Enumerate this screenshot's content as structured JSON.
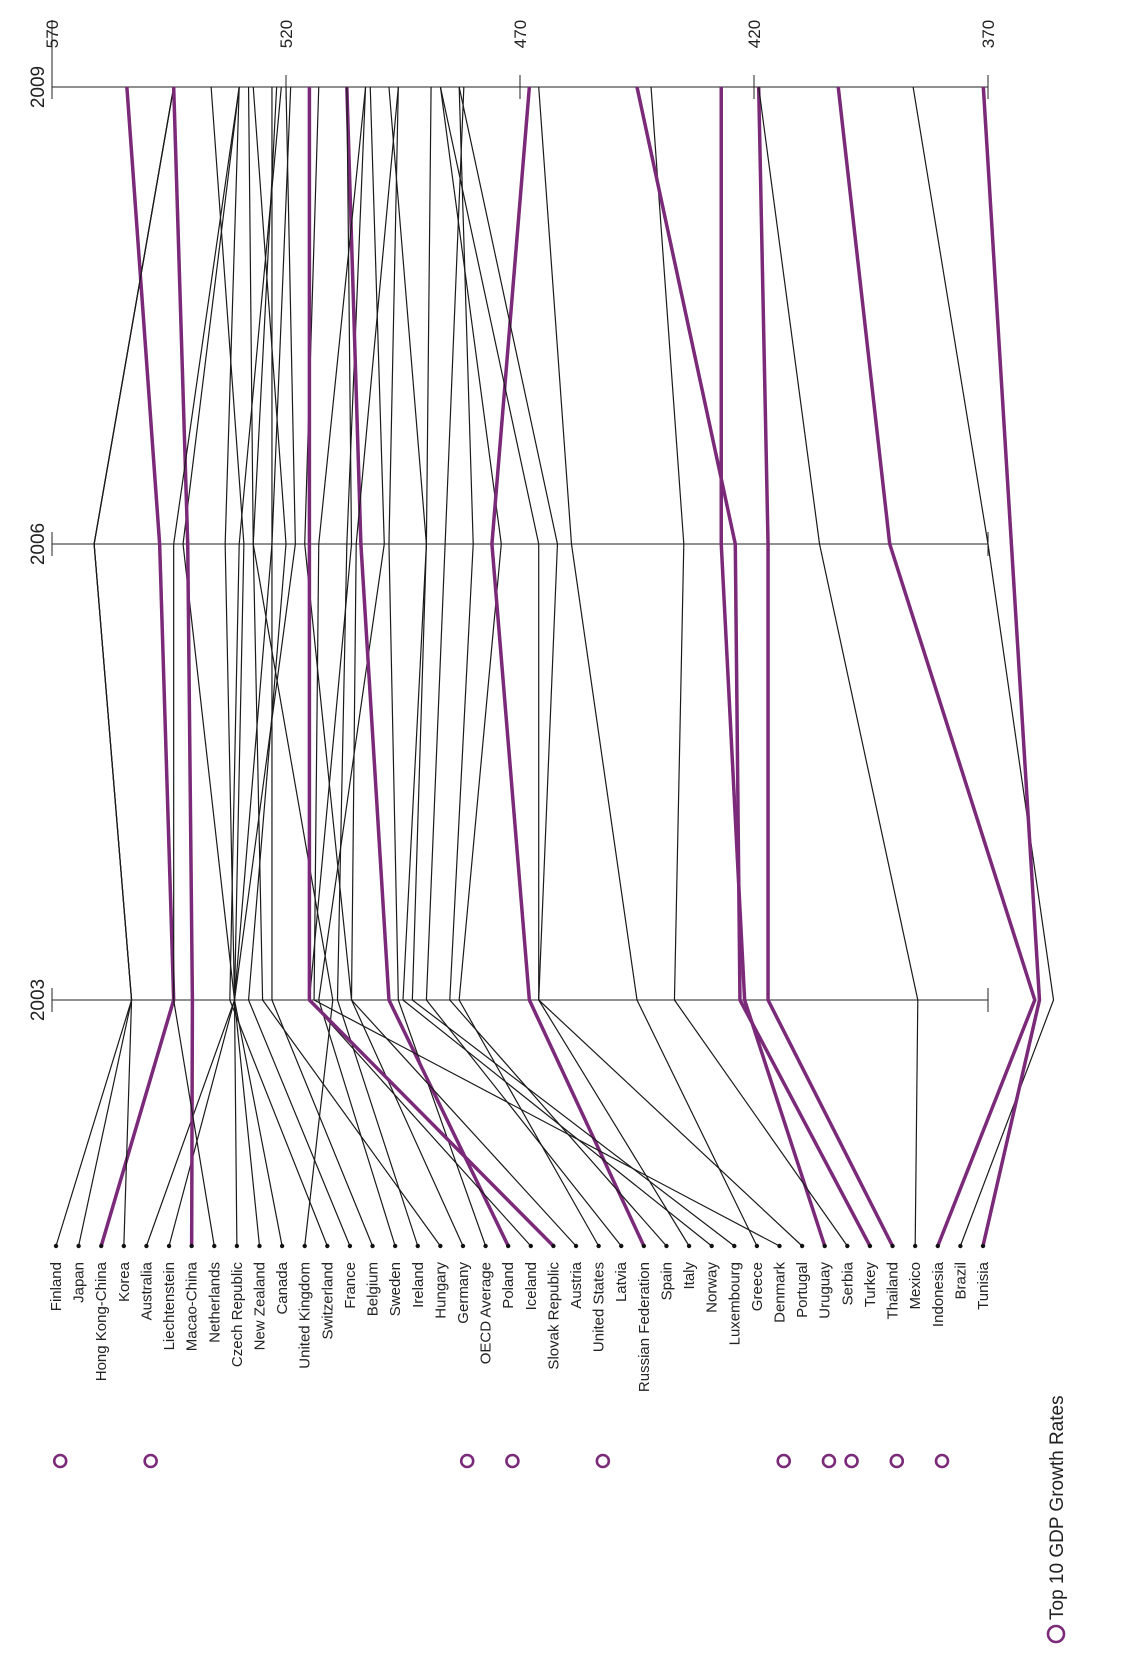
{
  "chart_data": {
    "type": "line",
    "subtype": "slope-chart",
    "orientation": "rotated-90",
    "x_axis": {
      "ticks": [
        "2003",
        "2006",
        "2009"
      ]
    },
    "value_axis": {
      "ticks": [
        "370",
        "420",
        "470",
        "520",
        "570"
      ],
      "range": [
        370,
        570
      ]
    },
    "legend": {
      "label": "Top 10 GDP Growth Rates",
      "color": "#7b2a79",
      "placement": "bottom-left"
    },
    "colors": {
      "highlight": "#7b2a79",
      "default": "#1a1a1a",
      "axis": "#222222"
    },
    "series": [
      {
        "name": "Finland",
        "highlight": false,
        "values": [
          553,
          561,
          544
        ]
      },
      {
        "name": "Japan",
        "highlight": false,
        "values": [
          553,
          561,
          544
        ]
      },
      {
        "name": "Hong Kong-China",
        "highlight": true,
        "values": [
          544,
          547,
          554
        ]
      },
      {
        "name": "Korea",
        "highlight": false,
        "values": [
          553,
          561,
          544
        ]
      },
      {
        "name": "Australia",
        "highlight": false,
        "values": [
          531,
          518,
          520
        ]
      },
      {
        "name": "Liechtenstein",
        "highlight": false,
        "values": [
          531,
          542,
          530
        ]
      },
      {
        "name": "Macao-China",
        "highlight": true,
        "values": [
          540,
          541,
          544
        ]
      },
      {
        "name": "Netherlands",
        "highlight": false,
        "values": [
          544,
          544,
          530
        ]
      },
      {
        "name": "Czech Republic",
        "highlight": false,
        "values": [
          531,
          533,
          530
        ]
      },
      {
        "name": "New Zealand",
        "highlight": false,
        "values": [
          531,
          523,
          519
        ]
      },
      {
        "name": "Canada",
        "highlight": false,
        "values": [
          531,
          529,
          536
        ]
      },
      {
        "name": "United Kingdom",
        "highlight": false,
        "values": [
          510,
          527,
          528
        ]
      },
      {
        "name": "Switzerland",
        "highlight": false,
        "values": [
          532,
          530,
          521
        ]
      },
      {
        "name": "France",
        "highlight": false,
        "values": [
          528,
          520,
          527
        ]
      },
      {
        "name": "Belgium",
        "highlight": false,
        "values": [
          523,
          523,
          523
        ]
      },
      {
        "name": "Sweden",
        "highlight": false,
        "values": [
          513,
          499,
          502
        ]
      },
      {
        "name": "Ireland",
        "highlight": false,
        "values": [
          509,
          507,
          503
        ]
      },
      {
        "name": "Hungary",
        "highlight": false,
        "values": [
          525,
          527,
          522
        ]
      },
      {
        "name": "Germany",
        "highlight": false,
        "values": [
          506,
          516,
          513
        ]
      },
      {
        "name": "OECD Average",
        "highlight": false,
        "values": [
          496,
          498,
          496
        ]
      },
      {
        "name": "Poland",
        "highlight": true,
        "values": [
          498,
          504,
          507
        ]
      },
      {
        "name": "Iceland",
        "highlight": false,
        "values": [
          515,
          506,
          507
        ]
      },
      {
        "name": "Slovak Republic",
        "highlight": true,
        "values": [
          515,
          515,
          515
        ]
      },
      {
        "name": "Austria",
        "highlight": false,
        "values": [
          506,
          505,
          496
        ]
      },
      {
        "name": "United States",
        "highlight": false,
        "values": [
          483,
          474,
          487
        ]
      },
      {
        "name": "Latvia",
        "highlight": false,
        "values": [
          490,
          486,
          482
        ]
      },
      {
        "name": "Russian Federation",
        "highlight": true,
        "values": [
          468,
          476,
          468
        ]
      },
      {
        "name": "Spain",
        "highlight": false,
        "values": [
          485,
          480,
          483
        ]
      },
      {
        "name": "Italy",
        "highlight": false,
        "values": [
          466,
          462,
          483
        ]
      },
      {
        "name": "Norway",
        "highlight": false,
        "values": [
          495,
          490,
          498
        ]
      },
      {
        "name": "Luxembourg",
        "highlight": false,
        "values": [
          493,
          490,
          489
        ]
      },
      {
        "name": "Greece",
        "highlight": false,
        "values": [
          445,
          459,
          466
        ]
      },
      {
        "name": "Denmark",
        "highlight": false,
        "values": [
          514,
          513,
          503
        ]
      },
      {
        "name": "Portugal",
        "highlight": false,
        "values": [
          466,
          466,
          487
        ]
      },
      {
        "name": "Uruguay",
        "highlight": true,
        "values": [
          422,
          427,
          427
        ]
      },
      {
        "name": "Serbia",
        "highlight": false,
        "values": [
          437,
          435,
          442
        ]
      },
      {
        "name": "Turkey",
        "highlight": true,
        "values": [
          423,
          424,
          445
        ]
      },
      {
        "name": "Thailand",
        "highlight": true,
        "values": [
          417,
          417,
          419
        ]
      },
      {
        "name": "Mexico",
        "highlight": false,
        "values": [
          385,
          406,
          419
        ]
      },
      {
        "name": "Indonesia",
        "highlight": true,
        "values": [
          360,
          391,
          402
        ]
      },
      {
        "name": "Brazil",
        "highlight": false,
        "values": [
          356,
          370,
          386
        ]
      },
      {
        "name": "Tunisia",
        "highlight": true,
        "values": [
          359,
          365,
          371
        ]
      }
    ]
  }
}
